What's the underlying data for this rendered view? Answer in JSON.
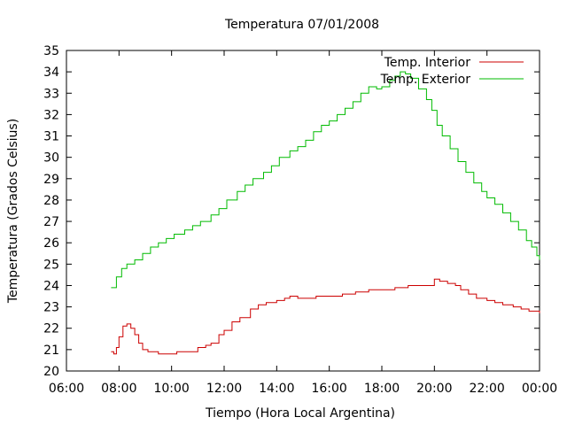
{
  "chart_data": {
    "type": "line",
    "title": "Temperatura 07/01/2008",
    "xlabel": "Tiempo (Hora Local Argentina)",
    "ylabel": "Temperatura (Grados Celsius)",
    "xlim": [
      6,
      24
    ],
    "ylim": [
      20,
      35
    ],
    "x_tick_labels": [
      "06:00",
      "08:00",
      "10:00",
      "12:00",
      "14:00",
      "16:00",
      "18:00",
      "20:00",
      "22:00",
      "00:00"
    ],
    "y_tick_labels": [
      "20",
      "21",
      "22",
      "23",
      "24",
      "25",
      "26",
      "27",
      "28",
      "29",
      "30",
      "31",
      "32",
      "33",
      "34",
      "35"
    ],
    "legend_position": "top-right",
    "grid": false,
    "series": [
      {
        "name": "Temp. Interior",
        "color": "#cc0000",
        "x": [
          7.7,
          7.8,
          7.9,
          8.0,
          8.15,
          8.3,
          8.45,
          8.6,
          8.75,
          8.9,
          9.1,
          9.3,
          9.5,
          9.7,
          10.0,
          10.2,
          10.5,
          10.8,
          11.0,
          11.3,
          11.5,
          11.8,
          12.0,
          12.3,
          12.6,
          13.0,
          13.3,
          13.6,
          14.0,
          14.3,
          14.5,
          14.8,
          15.0,
          15.5,
          16.0,
          16.5,
          17.0,
          17.5,
          18.0,
          18.5,
          19.0,
          19.5,
          19.8,
          20.0,
          20.2,
          20.5,
          20.8,
          21.0,
          21.3,
          21.6,
          22.0,
          22.3,
          22.6,
          23.0,
          23.3,
          23.6,
          23.9,
          24.0
        ],
        "values": [
          20.9,
          20.8,
          21.1,
          21.6,
          22.1,
          22.2,
          22.0,
          21.7,
          21.3,
          21.0,
          20.9,
          20.9,
          20.8,
          20.8,
          20.8,
          20.9,
          20.9,
          20.9,
          21.1,
          21.2,
          21.3,
          21.7,
          21.9,
          22.3,
          22.5,
          22.9,
          23.1,
          23.2,
          23.3,
          23.4,
          23.5,
          23.4,
          23.4,
          23.5,
          23.5,
          23.6,
          23.7,
          23.8,
          23.8,
          23.9,
          24.0,
          24.0,
          24.0,
          24.3,
          24.2,
          24.1,
          24.0,
          23.8,
          23.6,
          23.4,
          23.3,
          23.2,
          23.1,
          23.0,
          22.9,
          22.8,
          22.8,
          22.7
        ]
      },
      {
        "name": "Temp. Exterior",
        "color": "#00bb00",
        "x": [
          7.7,
          7.9,
          8.1,
          8.3,
          8.6,
          8.9,
          9.2,
          9.5,
          9.8,
          10.1,
          10.5,
          10.8,
          11.1,
          11.5,
          11.8,
          12.1,
          12.5,
          12.8,
          13.1,
          13.5,
          13.8,
          14.1,
          14.5,
          14.8,
          15.1,
          15.4,
          15.7,
          16.0,
          16.3,
          16.6,
          16.9,
          17.2,
          17.5,
          17.8,
          18.0,
          18.3,
          18.5,
          18.7,
          18.9,
          19.1,
          19.4,
          19.7,
          19.9,
          20.1,
          20.3,
          20.6,
          20.9,
          21.2,
          21.5,
          21.8,
          22.0,
          22.3,
          22.6,
          22.9,
          23.2,
          23.5,
          23.7,
          23.9,
          24.0
        ],
        "values": [
          23.9,
          24.4,
          24.8,
          25.0,
          25.2,
          25.5,
          25.8,
          26.0,
          26.2,
          26.4,
          26.6,
          26.8,
          27.0,
          27.3,
          27.6,
          28.0,
          28.4,
          28.7,
          29.0,
          29.3,
          29.6,
          30.0,
          30.3,
          30.5,
          30.8,
          31.2,
          31.5,
          31.7,
          32.0,
          32.3,
          32.6,
          33.0,
          33.3,
          33.2,
          33.3,
          33.6,
          33.8,
          34.0,
          33.9,
          33.7,
          33.2,
          32.7,
          32.2,
          31.5,
          31.0,
          30.4,
          29.8,
          29.3,
          28.8,
          28.4,
          28.1,
          27.8,
          27.4,
          27.0,
          26.6,
          26.1,
          25.8,
          25.4,
          25.2
        ]
      }
    ]
  }
}
